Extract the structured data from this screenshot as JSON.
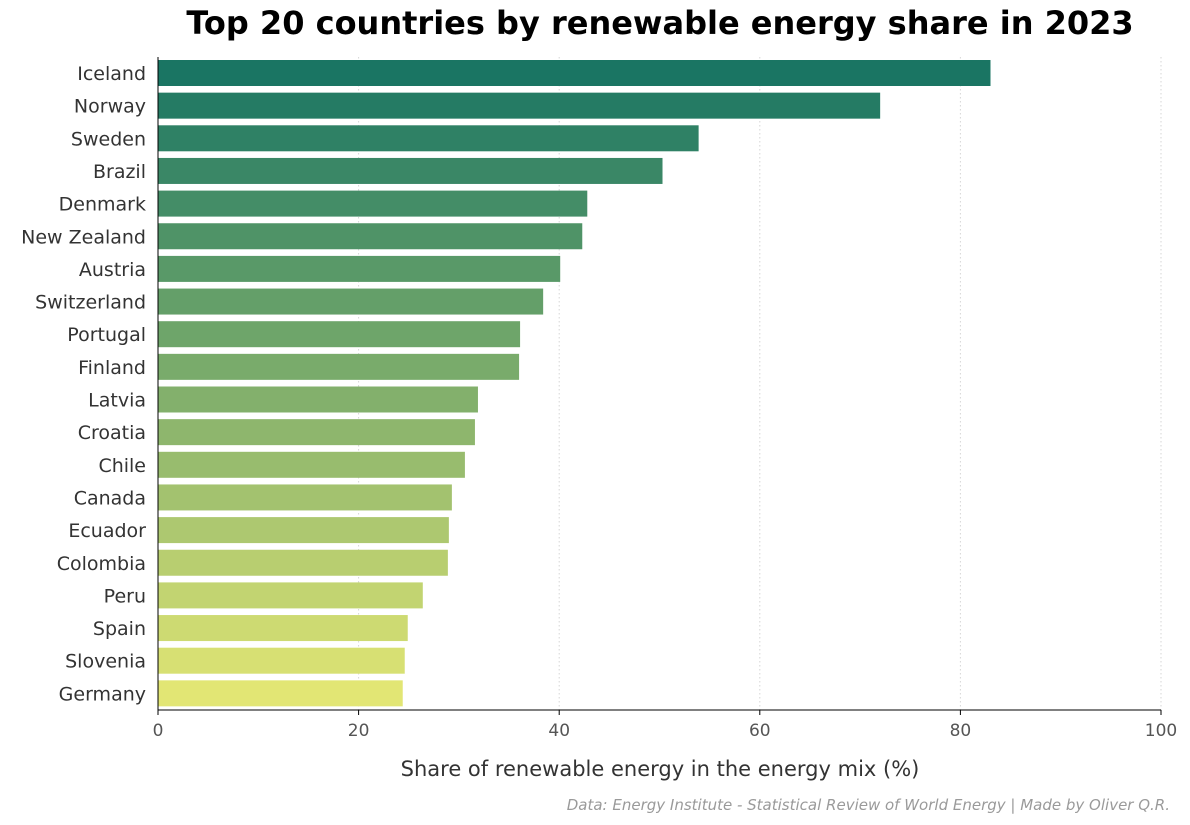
{
  "chart_data": {
    "type": "bar",
    "orientation": "horizontal",
    "title": "Top 20 countries by renewable energy share in 2023",
    "xlabel": "Share of renewable energy in the energy mix (%)",
    "ylabel": "",
    "xlim": [
      0,
      100
    ],
    "xticks": [
      0,
      20,
      40,
      60,
      80,
      100
    ],
    "grid": "vertical dotted",
    "categories": [
      "Iceland",
      "Norway",
      "Sweden",
      "Brazil",
      "Denmark",
      "New Zealand",
      "Austria",
      "Switzerland",
      "Portugal",
      "Finland",
      "Latvia",
      "Croatia",
      "Chile",
      "Canada",
      "Ecuador",
      "Colombia",
      "Peru",
      "Spain",
      "Slovenia",
      "Germany"
    ],
    "values": [
      83.0,
      72.0,
      53.9,
      50.3,
      42.8,
      42.3,
      40.1,
      38.4,
      36.1,
      36.0,
      31.9,
      31.6,
      30.6,
      29.3,
      29.0,
      28.9,
      26.4,
      24.9,
      24.6,
      24.4
    ],
    "colormap": [
      "#1a7563",
      "#e2e674"
    ]
  },
  "footer": {
    "credit": "Data: Energy Institute - Statistical Review of World Energy | Made by Oliver Q.R."
  }
}
